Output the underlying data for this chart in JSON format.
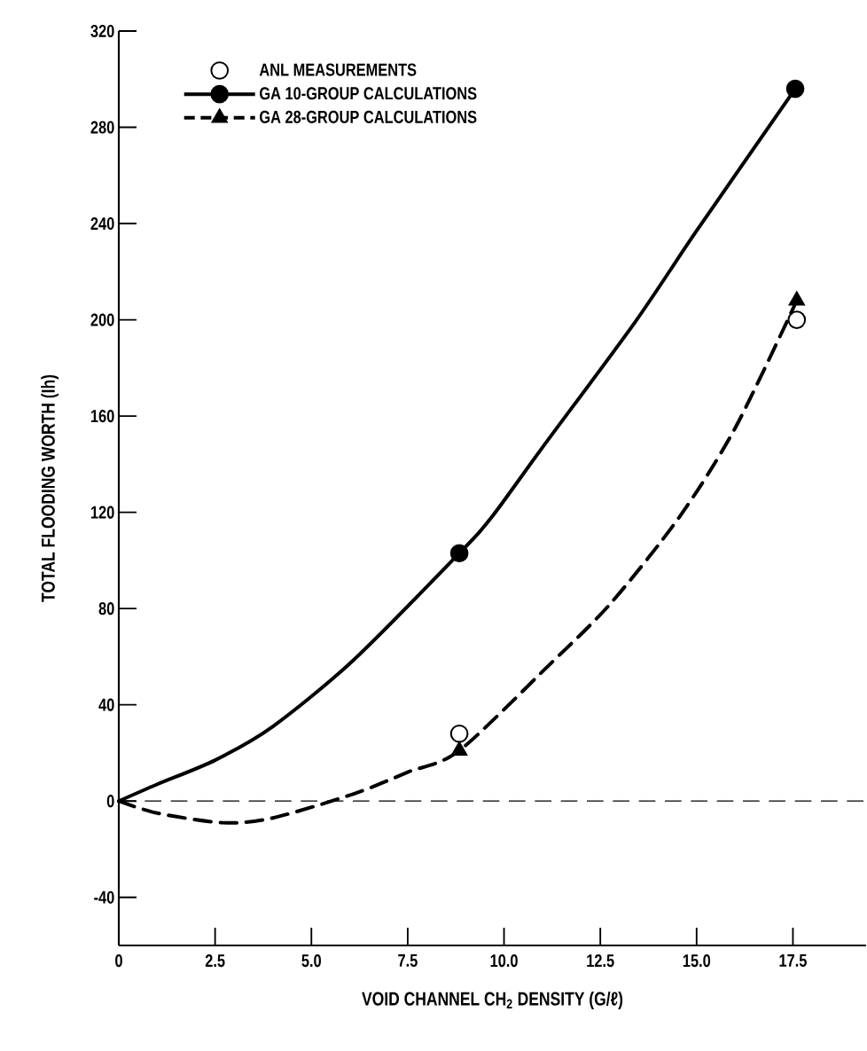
{
  "chart_data": {
    "type": "line",
    "xlabel": "VOID CHANNEL CH$_{2}$ DENSITY (G/ℓ)",
    "ylabel": "TOTAL FLOODING WORTH (Ih)",
    "xlim": [
      0,
      19.4
    ],
    "ylim": [
      -60,
      320
    ],
    "xticks": [
      0,
      2.5,
      {
        "value": 5,
        "label": "5.0"
      },
      7.5,
      {
        "value": 10,
        "label": "10.0"
      },
      12.5,
      {
        "value": 15,
        "label": "15.0"
      },
      17.5
    ],
    "yticks": [
      -40,
      0,
      40,
      80,
      120,
      160,
      200,
      240,
      280,
      320
    ],
    "grid": false,
    "legend": "top left",
    "ref_lines": [
      {
        "axis": "y",
        "value": 0,
        "line_style": "dashed",
        "color": "#000000"
      }
    ],
    "series": [
      {
        "type": "scatter",
        "name": "ANL MEASUREMENTS",
        "color": "#000000",
        "marker": "circle-open",
        "x": [
          8.84,
          17.6
        ],
        "values": [
          28,
          200
        ]
      },
      {
        "color": "#000000",
        "marker": "none",
        "line_style": "solid",
        "x": [
          0,
          1,
          2.5,
          4,
          6.1,
          8.84,
          9.68,
          11,
          13.4,
          15,
          17.56
        ],
        "values": [
          0,
          7,
          17,
          31,
          58.7,
          103,
          118,
          147,
          199,
          237,
          296
        ]
      },
      {
        "type": "scatter",
        "name": "GA 10-GROUP CALCULATIONS",
        "color": "#000000",
        "marker": "circle",
        "line_style": "solid",
        "x": [
          8.84,
          17.56
        ],
        "values": [
          103,
          296
        ]
      },
      {
        "color": "#000000",
        "marker": "none",
        "line_style": "dashed",
        "x": [
          0,
          1,
          2.7,
          4,
          6.1,
          7.5,
          8.84,
          11.2,
          12.76,
          14.55,
          16,
          17.6
        ],
        "values": [
          0,
          -5,
          -9,
          -7,
          3,
          12,
          21,
          57,
          82,
          118,
          155,
          208
        ]
      },
      {
        "type": "scatter",
        "name": "GA 28-GROUP CALCULATIONS",
        "color": "#000000",
        "marker": "triangle",
        "line_style": "dashed",
        "x": [
          8.84,
          17.6
        ],
        "values": [
          21,
          208
        ]
      }
    ]
  }
}
